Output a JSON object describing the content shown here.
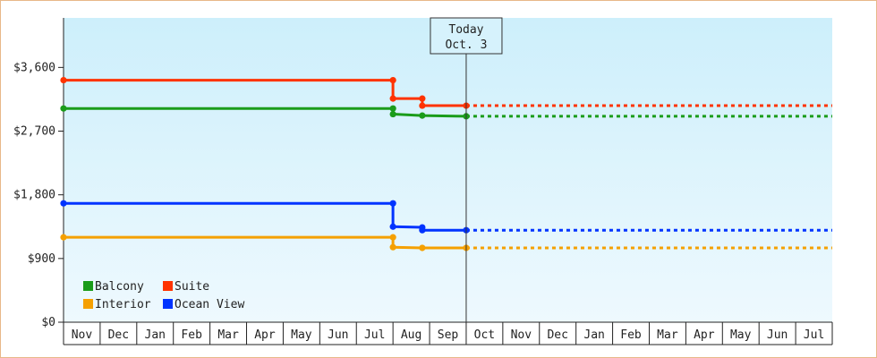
{
  "chart_data": {
    "type": "line",
    "title": "",
    "xlabel": "",
    "ylabel": "",
    "ylim": [
      0,
      4300
    ],
    "yticks": [
      0,
      900,
      1800,
      2700,
      3600
    ],
    "ytick_labels": [
      "$0",
      "$900",
      "$1,800",
      "$2,700",
      "$3,600"
    ],
    "xtick_labels": [
      "Nov",
      "Dec",
      "Jan",
      "Feb",
      "Mar",
      "Apr",
      "May",
      "Jun",
      "Jul",
      "Aug",
      "Sep",
      "Oct",
      "Nov",
      "Dec",
      "Jan",
      "Feb",
      "Mar",
      "Apr",
      "May",
      "Jun",
      "Jul"
    ],
    "today_label": [
      "Today",
      "Oct. 3"
    ],
    "today_x": 11.0,
    "x_end": 21.0,
    "legend_position": "bottom-left",
    "colors": {
      "Balcony": "#1a9c1a",
      "Suite": "#ff3300",
      "Interior": "#f5a000",
      "Ocean View": "#0033ff"
    },
    "series": [
      {
        "name": "Balcony",
        "points": [
          [
            0.0,
            3020
          ],
          [
            9.0,
            3020
          ],
          [
            9.0,
            2940
          ],
          [
            9.8,
            2920
          ],
          [
            11.0,
            2910
          ]
        ],
        "projected_value": 2910
      },
      {
        "name": "Suite",
        "points": [
          [
            0.0,
            3420
          ],
          [
            9.0,
            3420
          ],
          [
            9.0,
            3160
          ],
          [
            9.8,
            3160
          ],
          [
            9.8,
            3060
          ],
          [
            11.0,
            3060
          ]
        ],
        "projected_value": 3060
      },
      {
        "name": "Interior",
        "points": [
          [
            0.0,
            1200
          ],
          [
            9.0,
            1200
          ],
          [
            9.0,
            1060
          ],
          [
            9.8,
            1050
          ],
          [
            11.0,
            1050
          ]
        ],
        "projected_value": 1050
      },
      {
        "name": "Ocean View",
        "points": [
          [
            0.0,
            1680
          ],
          [
            9.0,
            1680
          ],
          [
            9.0,
            1350
          ],
          [
            9.8,
            1340
          ],
          [
            9.8,
            1300
          ],
          [
            11.0,
            1300
          ]
        ],
        "projected_value": 1300
      }
    ]
  }
}
